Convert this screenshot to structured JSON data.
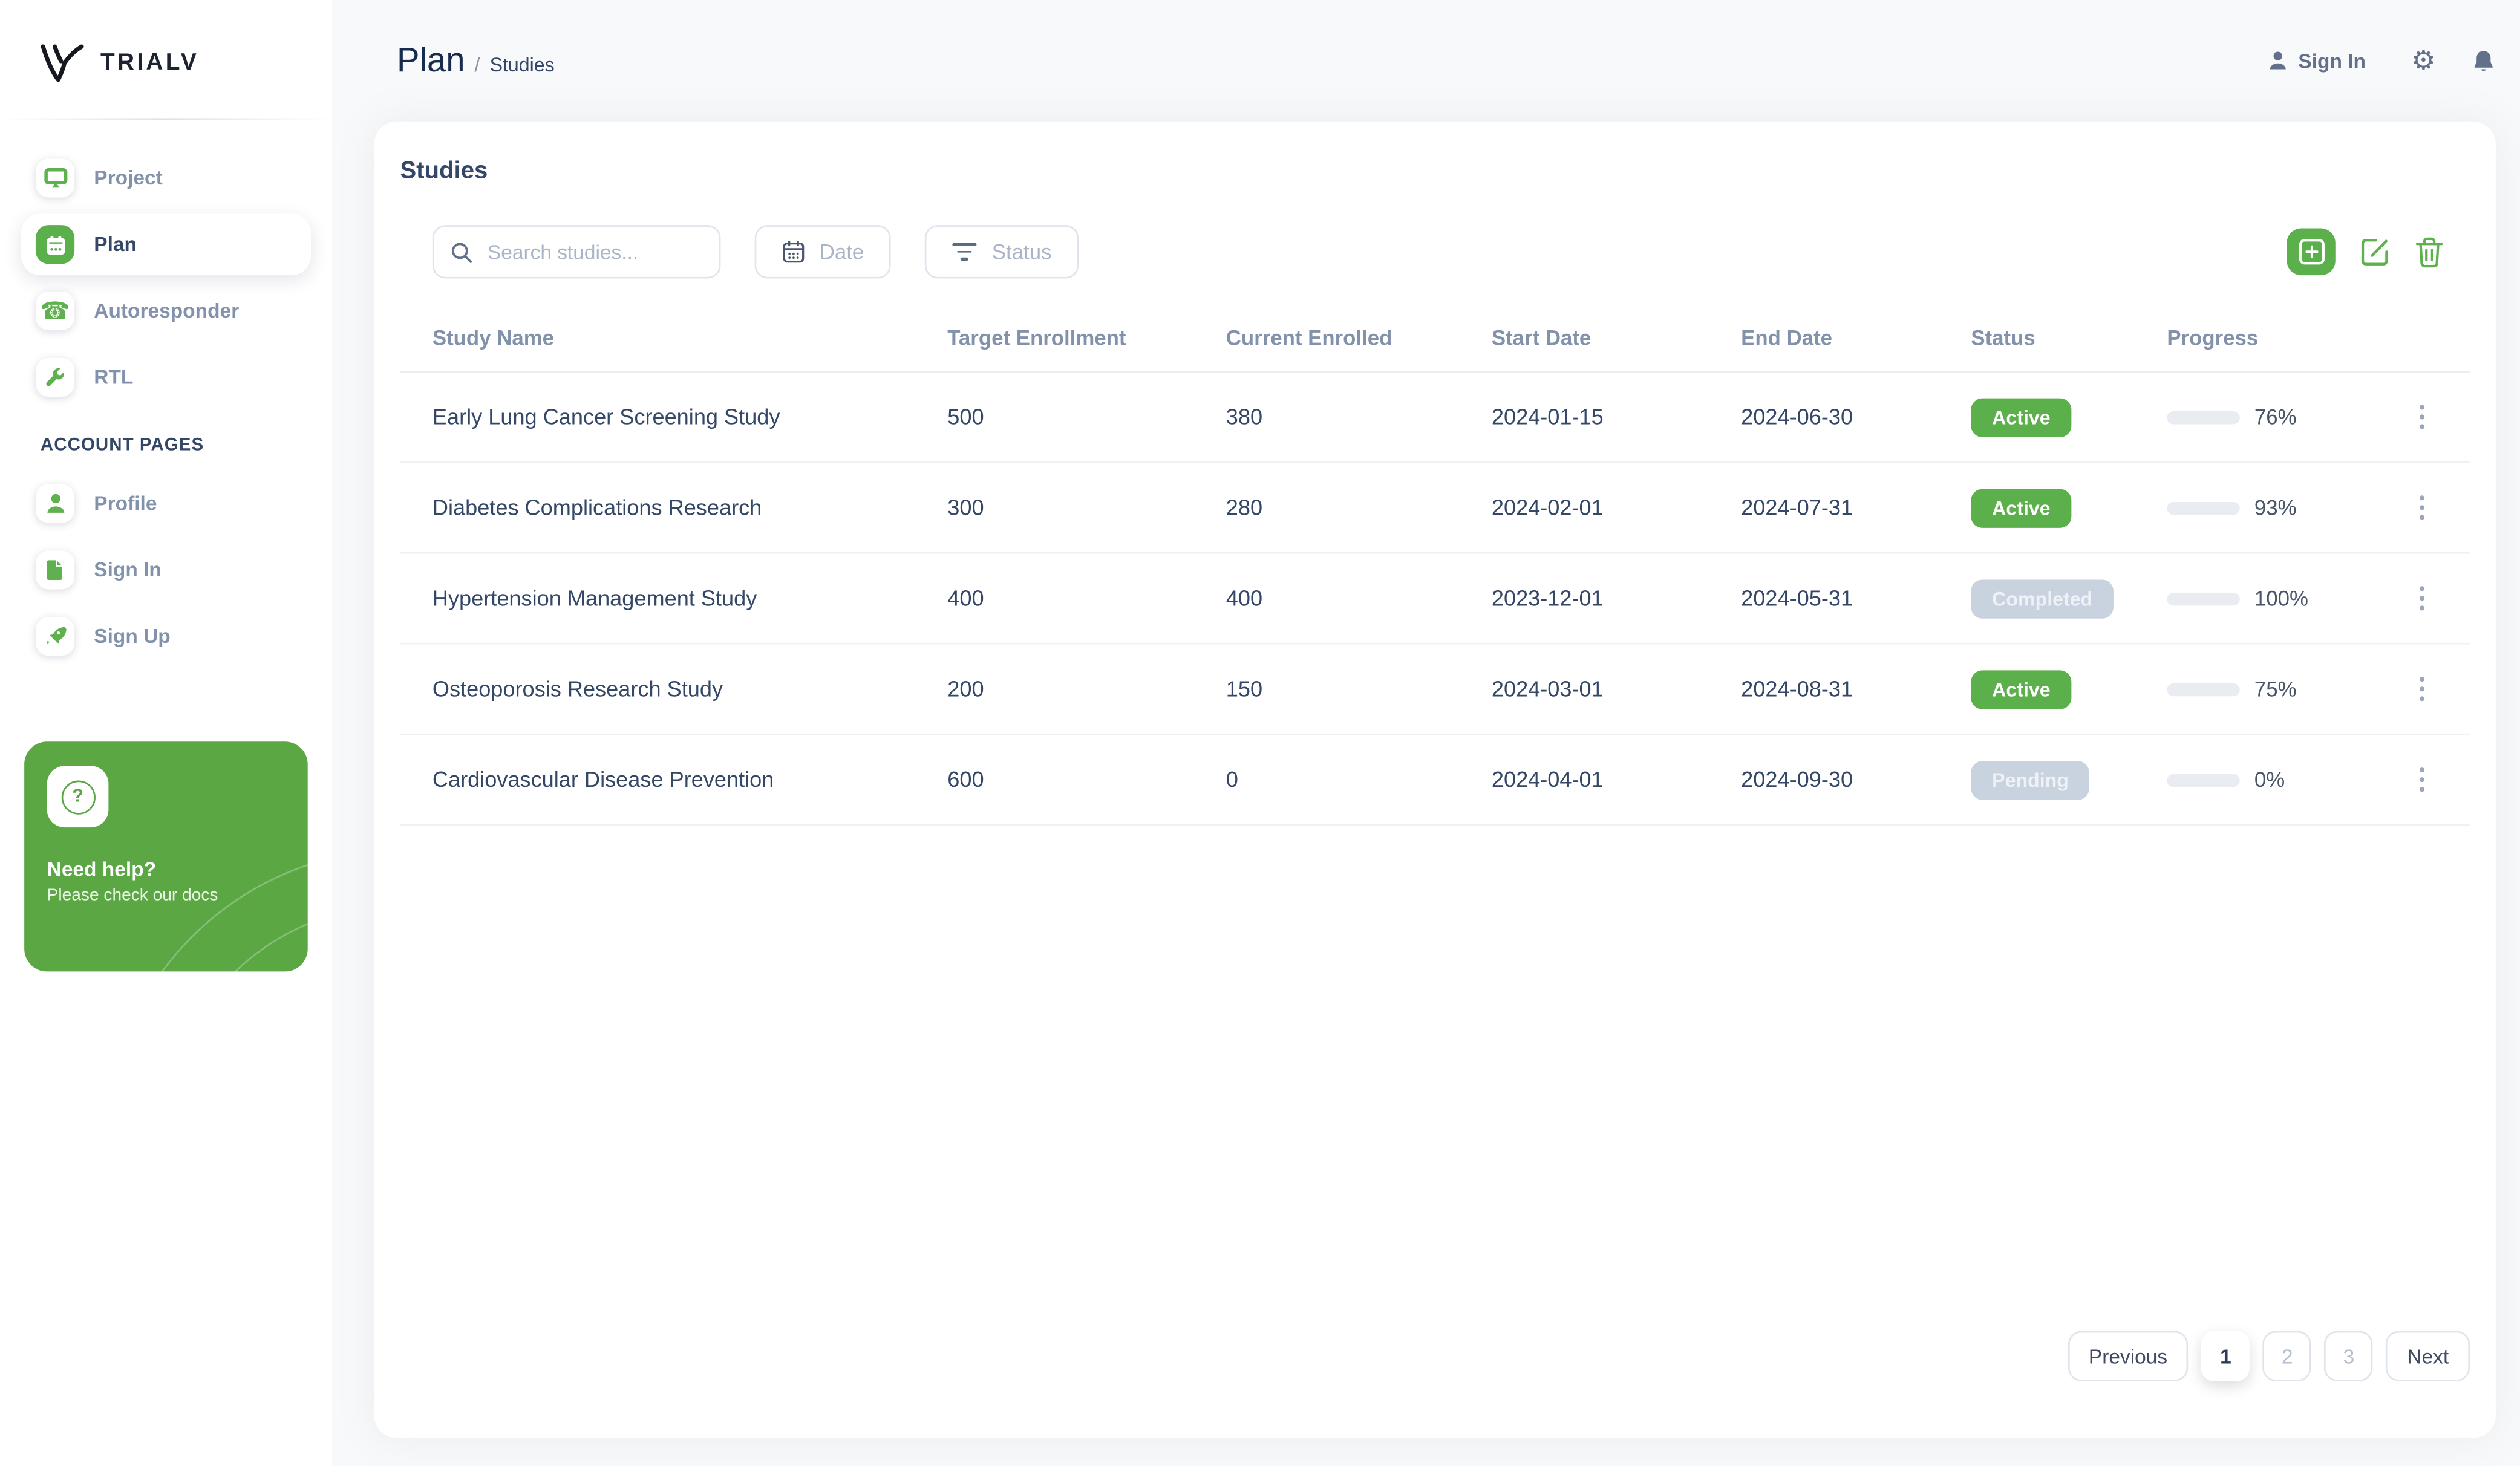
{
  "brand": {
    "name": "TRIALV"
  },
  "sidebar": {
    "items": [
      {
        "label": "Project"
      },
      {
        "label": "Plan"
      },
      {
        "label": "Autoresponder"
      },
      {
        "label": "RTL"
      }
    ],
    "section_label": "ACCOUNT PAGES",
    "account_items": [
      {
        "label": "Profile"
      },
      {
        "label": "Sign In"
      },
      {
        "label": "Sign Up"
      }
    ],
    "help": {
      "title": "Need help?",
      "subtitle": "Please check our docs",
      "icon": "?"
    }
  },
  "topbar": {
    "breadcrumb_root": "Plan",
    "breadcrumb_separator": "/",
    "breadcrumb_current": "Studies",
    "sign_in_label": "Sign In"
  },
  "studies": {
    "title": "Studies",
    "search_placeholder": "Search studies...",
    "date_filter_label": "Date",
    "status_filter_label": "Status",
    "columns": [
      "Study Name",
      "Target Enrollment",
      "Current Enrolled",
      "Start Date",
      "End Date",
      "Status",
      "Progress"
    ],
    "rows": [
      {
        "name": "Early Lung Cancer Screening Study",
        "target": "500",
        "current": "380",
        "start": "2024-01-15",
        "end": "2024-06-30",
        "status": "Active",
        "progress": 76,
        "progress_label": "76%"
      },
      {
        "name": "Diabetes Complications Research",
        "target": "300",
        "current": "280",
        "start": "2024-02-01",
        "end": "2024-07-31",
        "status": "Active",
        "progress": 93,
        "progress_label": "93%"
      },
      {
        "name": "Hypertension Management Study",
        "target": "400",
        "current": "400",
        "start": "2023-12-01",
        "end": "2024-05-31",
        "status": "Completed",
        "progress": 100,
        "progress_label": "100%"
      },
      {
        "name": "Osteoporosis Research Study",
        "target": "200",
        "current": "150",
        "start": "2024-03-01",
        "end": "2024-08-31",
        "status": "Active",
        "progress": 75,
        "progress_label": "75%"
      },
      {
        "name": "Cardiovascular Disease Prevention",
        "target": "600",
        "current": "0",
        "start": "2024-04-01",
        "end": "2024-09-30",
        "status": "Pending",
        "progress": 0,
        "progress_label": "0%"
      }
    ],
    "pagination": {
      "previous": "Previous",
      "pages": [
        "1",
        "2",
        "3"
      ],
      "active_page": "1",
      "next": "Next"
    }
  },
  "colors": {
    "accent_green": "#5cb04c",
    "icon_green": "#5fb14f",
    "help_card_green": "#5aa744",
    "muted_pill_bg": "#c9d3df",
    "dark_text": "#344767",
    "muted_text": "#8392ab",
    "main_background": "#f8f9fa"
  }
}
